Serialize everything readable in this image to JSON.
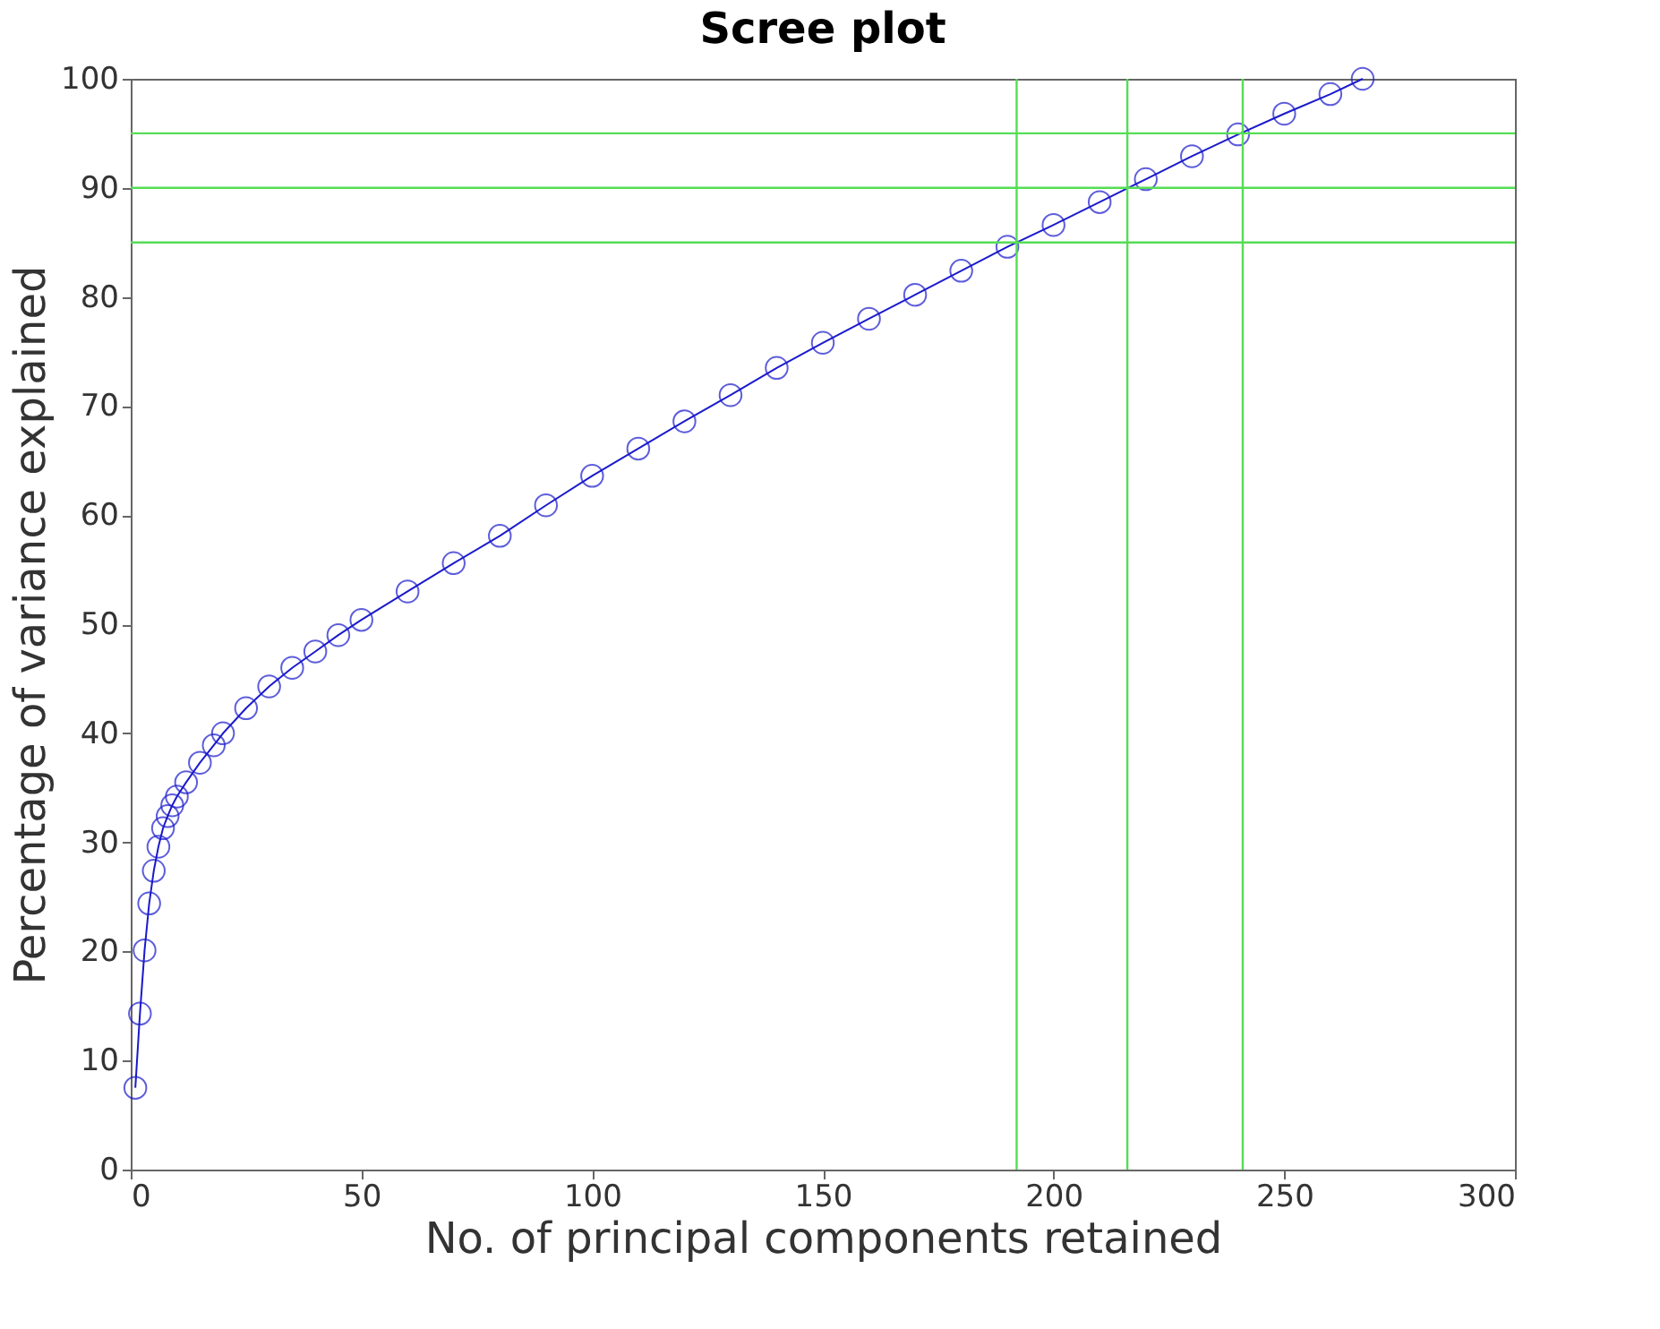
{
  "chart_data": {
    "type": "line",
    "title": "Scree plot",
    "xlabel": "No. of principal components retained",
    "ylabel": "Percentage of variance explained",
    "series": [
      {
        "color": "#1a1acc",
        "x": [
          1,
          2,
          3,
          4,
          5,
          6,
          7,
          8,
          9,
          10,
          12,
          15,
          18,
          20,
          25,
          30,
          35,
          40,
          45,
          50,
          60,
          70,
          80,
          90,
          100,
          110,
          120,
          130,
          140,
          150,
          160,
          170,
          180,
          190,
          200,
          210,
          220,
          230,
          240,
          250,
          260,
          267
        ],
        "values": [
          7.5,
          14.3,
          20.1,
          24.4,
          27.4,
          29.6,
          31.3,
          32.4,
          33.4,
          34.2,
          35.5,
          37.3,
          38.9,
          40,
          42.3,
          44.3,
          46,
          47.5,
          49,
          50.4,
          53,
          55.6,
          58.1,
          60.9,
          63.6,
          66.1,
          68.6,
          71,
          73.5,
          75.8,
          78,
          80.2,
          82.4,
          84.6,
          86.6,
          88.7,
          90.8,
          92.9,
          94.9,
          96.8,
          98.6,
          100
        ]
      }
    ],
    "xlim": [
      0,
      300
    ],
    "xticks": [
      0,
      50,
      100,
      150,
      200,
      250,
      300
    ],
    "ylim": [
      0,
      100
    ],
    "yticks": [
      0,
      10,
      20,
      30,
      40,
      50,
      60,
      70,
      80,
      90,
      100
    ],
    "ref_lines": [
      {
        "axis": "x",
        "value": 192,
        "color": "#55dd55"
      },
      {
        "axis": "x",
        "value": 216,
        "color": "#55dd55"
      },
      {
        "axis": "x",
        "value": 241,
        "color": "#55dd55"
      },
      {
        "axis": "y",
        "value": 85,
        "color": "#55dd55"
      },
      {
        "axis": "y",
        "value": 90,
        "color": "#55dd55"
      },
      {
        "axis": "y",
        "value": 95,
        "color": "#55dd55"
      }
    ],
    "grid": false,
    "marker": "circle",
    "line_style": "solid"
  }
}
